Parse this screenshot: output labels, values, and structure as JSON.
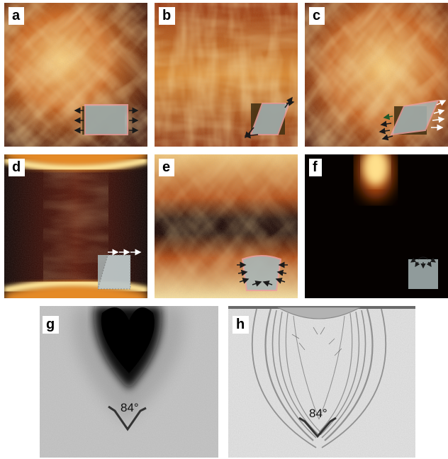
{
  "panels": {
    "a": {
      "label": "a"
    },
    "b": {
      "label": "b"
    },
    "c": {
      "label": "c"
    },
    "d": {
      "label": "d"
    },
    "e": {
      "label": "e"
    },
    "f": {
      "label": "f"
    },
    "g": {
      "label": "g",
      "angle_text": "84°"
    },
    "h": {
      "label": "h",
      "angle_text": "84°"
    }
  },
  "colors": {
    "heat_dark": "#1a0500",
    "heat_mid": "#b5430c",
    "heat_bright": "#ffd27a",
    "arrow_dark": "#1a1a1a",
    "arrow_light": "#ffffff",
    "arrow_green": "#1e5a2a",
    "specimen_fill": "#a9b6b6"
  }
}
